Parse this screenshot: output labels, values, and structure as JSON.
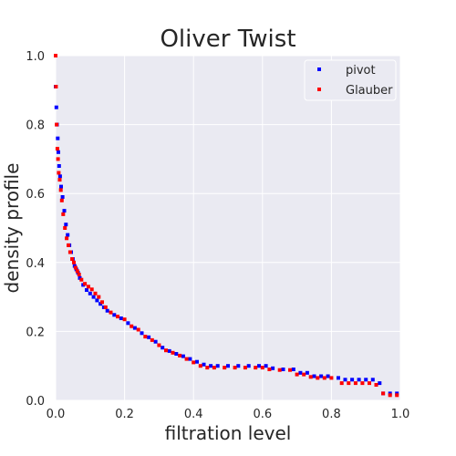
{
  "chart_data": {
    "type": "scatter",
    "title": "Oliver Twist",
    "xlabel": "filtration level",
    "ylabel": "density profile",
    "xlim": [
      0,
      1
    ],
    "ylim": [
      0,
      1
    ],
    "xticks": [
      "0.0",
      "0.2",
      "0.4",
      "0.6",
      "0.8",
      "1.0"
    ],
    "yticks": [
      "0.0",
      "0.2",
      "0.4",
      "0.6",
      "0.8",
      "1.0"
    ],
    "grid": true,
    "legend_position": "top-right",
    "series": [
      {
        "name": "pivot",
        "color": "#0000ff",
        "x": [
          0.0,
          0.002,
          0.004,
          0.006,
          0.008,
          0.01,
          0.013,
          0.016,
          0.02,
          0.025,
          0.03,
          0.035,
          0.04,
          0.045,
          0.05,
          0.055,
          0.06,
          0.065,
          0.07,
          0.08,
          0.09,
          0.1,
          0.11,
          0.12,
          0.13,
          0.14,
          0.15,
          0.17,
          0.19,
          0.21,
          0.23,
          0.25,
          0.27,
          0.29,
          0.31,
          0.33,
          0.35,
          0.37,
          0.39,
          0.41,
          0.43,
          0.45,
          0.47,
          0.5,
          0.53,
          0.56,
          0.59,
          0.61,
          0.63,
          0.66,
          0.69,
          0.71,
          0.73,
          0.75,
          0.77,
          0.79,
          0.82,
          0.84,
          0.86,
          0.88,
          0.9,
          0.92,
          0.94,
          0.95,
          0.97,
          0.99
        ],
        "y": [
          0.91,
          0.85,
          0.8,
          0.76,
          0.72,
          0.68,
          0.65,
          0.62,
          0.59,
          0.55,
          0.51,
          0.48,
          0.45,
          0.43,
          0.41,
          0.39,
          0.38,
          0.37,
          0.355,
          0.335,
          0.32,
          0.31,
          0.3,
          0.29,
          0.28,
          0.27,
          0.26,
          0.248,
          0.238,
          0.224,
          0.21,
          0.195,
          0.183,
          0.17,
          0.153,
          0.143,
          0.135,
          0.128,
          0.12,
          0.112,
          0.104,
          0.1,
          0.1,
          0.1,
          0.1,
          0.1,
          0.1,
          0.1,
          0.093,
          0.09,
          0.09,
          0.08,
          0.08,
          0.07,
          0.07,
          0.07,
          0.065,
          0.06,
          0.06,
          0.06,
          0.06,
          0.06,
          0.05,
          0.02,
          0.02,
          0.02
        ]
      },
      {
        "name": "Glauber",
        "color": "#ff0000",
        "x": [
          0.0,
          0.001,
          0.003,
          0.005,
          0.007,
          0.009,
          0.012,
          0.015,
          0.018,
          0.022,
          0.027,
          0.032,
          0.037,
          0.042,
          0.048,
          0.053,
          0.058,
          0.063,
          0.068,
          0.075,
          0.085,
          0.095,
          0.105,
          0.115,
          0.125,
          0.135,
          0.145,
          0.16,
          0.18,
          0.2,
          0.22,
          0.24,
          0.26,
          0.28,
          0.3,
          0.32,
          0.34,
          0.36,
          0.38,
          0.4,
          0.42,
          0.44,
          0.46,
          0.49,
          0.52,
          0.55,
          0.58,
          0.6,
          0.62,
          0.65,
          0.68,
          0.7,
          0.72,
          0.74,
          0.76,
          0.78,
          0.8,
          0.83,
          0.85,
          0.87,
          0.89,
          0.91,
          0.93,
          0.95,
          0.97,
          0.99
        ],
        "y": [
          1.0,
          0.91,
          0.8,
          0.73,
          0.7,
          0.66,
          0.64,
          0.61,
          0.58,
          0.54,
          0.5,
          0.47,
          0.45,
          0.43,
          0.41,
          0.4,
          0.385,
          0.375,
          0.365,
          0.35,
          0.338,
          0.33,
          0.322,
          0.31,
          0.3,
          0.285,
          0.27,
          0.255,
          0.243,
          0.235,
          0.215,
          0.205,
          0.185,
          0.175,
          0.16,
          0.145,
          0.138,
          0.13,
          0.12,
          0.11,
          0.1,
          0.095,
          0.095,
          0.095,
          0.095,
          0.095,
          0.095,
          0.095,
          0.09,
          0.088,
          0.088,
          0.075,
          0.075,
          0.068,
          0.065,
          0.065,
          0.065,
          0.05,
          0.05,
          0.05,
          0.05,
          0.05,
          0.045,
          0.02,
          0.015,
          0.015
        ]
      }
    ]
  }
}
